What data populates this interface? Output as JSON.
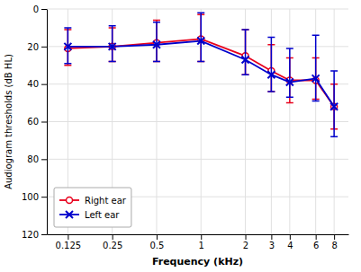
{
  "chart_data": {
    "type": "line",
    "xlabel": "Frequency (kHz)",
    "ylabel": "Audiogram thresholds (dB HL)",
    "x": [
      0.125,
      0.25,
      0.5,
      1,
      2,
      3,
      4,
      6,
      8
    ],
    "series": [
      {
        "name": "Right ear",
        "color": "#e8001c",
        "marker": "circle",
        "values": [
          21,
          20,
          18,
          16,
          25,
          33,
          38,
          38,
          52
        ],
        "err_upper": [
          9,
          8,
          10,
          12,
          10,
          11,
          12,
          10,
          12
        ],
        "err_lower": [
          10,
          10,
          12,
          13,
          14,
          14,
          12,
          12,
          12
        ]
      },
      {
        "name": "Left ear",
        "color": "#0000cc",
        "marker": "x",
        "values": [
          20,
          20,
          19,
          17,
          27,
          35,
          39,
          37,
          52
        ],
        "err_upper": [
          9,
          8,
          9,
          11,
          8,
          9,
          8,
          12,
          16
        ],
        "err_lower": [
          10,
          11,
          12,
          15,
          16,
          20,
          18,
          23,
          19
        ]
      }
    ],
    "xlim": [
      0.09,
      10
    ],
    "xticks": [
      0.125,
      0.25,
      0.5,
      1,
      2,
      3,
      4,
      6,
      8
    ],
    "ylim": [
      120,
      0
    ],
    "yticks": [
      0,
      20,
      40,
      60,
      80,
      100,
      120
    ],
    "log": "x",
    "grid": true,
    "legend": "lower left"
  }
}
